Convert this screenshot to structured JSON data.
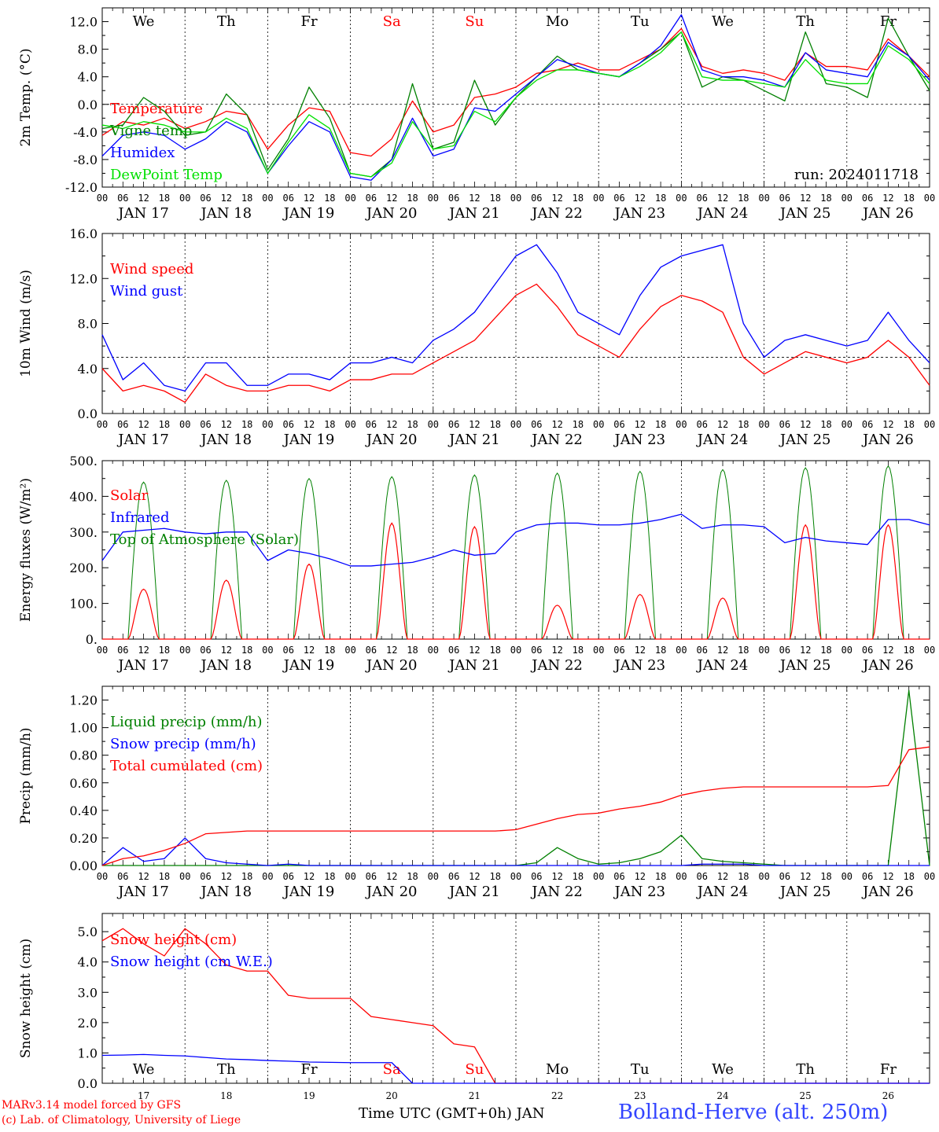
{
  "chart_data": [
    {
      "type": "line",
      "ylabel": "2m Temp. (°C)",
      "ylim": [
        -12,
        14
      ],
      "yticks": [
        "12.0",
        "8.0",
        "4.0",
        "0.0",
        "-4.0",
        "-8.0",
        "-12.0"
      ],
      "ytick_values": [
        12,
        8,
        4,
        0,
        -4,
        -8,
        -12
      ],
      "ref_line": 0,
      "run_label": "run: 2024011718",
      "day_names": [
        "We",
        "Th",
        "Fr",
        "Sa",
        "Su",
        "Mo",
        "Tu",
        "We",
        "Th",
        "Fr"
      ],
      "weekend_color": "#ff0000",
      "legend": [
        "Temperature",
        "Vigne temp",
        "Humidex",
        "DewPoint Temp"
      ],
      "x": [
        0,
        0.25,
        0.5,
        0.75,
        1,
        1.25,
        1.5,
        1.75,
        2,
        2.25,
        2.5,
        2.75,
        3,
        3.25,
        3.5,
        3.75,
        4,
        4.25,
        4.5,
        4.75,
        5,
        5.25,
        5.5,
        5.75,
        6,
        6.25,
        6.5,
        6.75,
        7,
        7.25,
        7.5,
        7.75,
        8,
        8.25,
        8.5,
        8.75,
        9,
        9.25,
        9.5,
        9.75,
        10
      ],
      "series": [
        {
          "name": "Temperature",
          "color": "#ff0000",
          "values": [
            -4.5,
            -2.5,
            -3.0,
            -2.0,
            -3.5,
            -2.5,
            -1.0,
            -1.5,
            -6.5,
            -3.0,
            -0.5,
            -1.0,
            -7.0,
            -7.5,
            -5.0,
            0.5,
            -4.0,
            -3.0,
            1.0,
            1.5,
            2.5,
            4.5,
            5.0,
            6.0,
            5.0,
            5.0,
            6.5,
            8.0,
            11.0,
            5.5,
            4.5,
            5.0,
            4.5,
            3.5,
            7.5,
            5.5,
            5.5,
            5.0,
            9.5,
            7.0,
            4.0
          ]
        },
        {
          "name": "Vigne temp",
          "color": "#008000",
          "values": [
            -3.5,
            -3.0,
            1.0,
            -1.0,
            -4.5,
            -4.0,
            1.5,
            -1.5,
            -9.5,
            -5.0,
            2.5,
            -2.0,
            -10.0,
            -10.5,
            -8.0,
            3.0,
            -6.5,
            -5.5,
            3.5,
            -3.0,
            1.0,
            4.0,
            7.0,
            5.0,
            4.5,
            4.0,
            6.0,
            8.0,
            10.5,
            2.5,
            4.0,
            3.5,
            2.0,
            0.5,
            10.5,
            3.0,
            2.5,
            1.0,
            12.5,
            7.0,
            2.0
          ]
        },
        {
          "name": "Humidex",
          "color": "#0000ff",
          "values": [
            -7.5,
            -4.5,
            -4.0,
            -4.5,
            -6.5,
            -5.0,
            -2.5,
            -4.0,
            -10.0,
            -6.0,
            -2.5,
            -4.0,
            -10.5,
            -11.0,
            -8.0,
            -2.0,
            -7.5,
            -6.5,
            -0.5,
            -1.0,
            1.5,
            4.0,
            6.5,
            5.5,
            4.5,
            4.0,
            6.0,
            8.5,
            13.0,
            5.0,
            4.0,
            4.0,
            3.5,
            2.5,
            7.5,
            5.0,
            4.5,
            4.0,
            9.0,
            7.0,
            3.5
          ]
        },
        {
          "name": "DewPoint Temp",
          "color": "#00e000",
          "values": [
            -3.0,
            -3.5,
            -2.5,
            -3.0,
            -4.0,
            -4.0,
            -2.0,
            -3.5,
            -10.0,
            -5.5,
            -1.5,
            -3.5,
            -10.0,
            -10.5,
            -8.5,
            -2.5,
            -6.5,
            -6.0,
            -1.0,
            -2.5,
            1.0,
            3.5,
            5.0,
            5.0,
            4.5,
            4.0,
            5.5,
            7.5,
            10.5,
            4.0,
            3.5,
            3.5,
            3.0,
            2.5,
            6.5,
            3.5,
            3.0,
            3.0,
            8.5,
            6.5,
            3.0
          ]
        }
      ],
      "xtick_hours": [
        "00",
        "06",
        "12",
        "18"
      ],
      "date_labels": [
        "JAN 17",
        "JAN 18",
        "JAN 19",
        "JAN 20",
        "JAN 21",
        "JAN 22",
        "JAN 23",
        "JAN 24",
        "JAN 25",
        "JAN 26"
      ]
    },
    {
      "type": "line",
      "ylabel": "10m Wind (m/s)",
      "ylim": [
        0,
        16
      ],
      "yticks": [
        "16.0",
        "12.0",
        "8.0",
        "4.0",
        "0.0"
      ],
      "ytick_values": [
        16,
        12,
        8,
        4,
        0
      ],
      "ref_line": 5,
      "legend": [
        "Wind speed",
        "Wind gust"
      ],
      "x": [
        0,
        0.25,
        0.5,
        0.75,
        1,
        1.25,
        1.5,
        1.75,
        2,
        2.25,
        2.5,
        2.75,
        3,
        3.25,
        3.5,
        3.75,
        4,
        4.25,
        4.5,
        4.75,
        5,
        5.25,
        5.5,
        5.75,
        6,
        6.25,
        6.5,
        6.75,
        7,
        7.25,
        7.5,
        7.75,
        8,
        8.25,
        8.5,
        8.75,
        9,
        9.25,
        9.5,
        9.75,
        10
      ],
      "series": [
        {
          "name": "Wind speed",
          "color": "#ff0000",
          "values": [
            4.0,
            2.0,
            2.5,
            2.0,
            1.0,
            3.5,
            2.5,
            2.0,
            2.0,
            2.5,
            2.5,
            2.0,
            3.0,
            3.0,
            3.5,
            3.5,
            4.5,
            5.5,
            6.5,
            8.5,
            10.5,
            11.5,
            9.5,
            7.0,
            6.0,
            5.0,
            7.5,
            9.5,
            10.5,
            10.0,
            9.0,
            5.0,
            3.5,
            4.5,
            5.5,
            5.0,
            4.5,
            5.0,
            6.5,
            5.0,
            2.5
          ]
        },
        {
          "name": "Wind gust",
          "color": "#0000ff",
          "values": [
            7.0,
            3.0,
            4.5,
            2.5,
            2.0,
            4.5,
            4.5,
            2.5,
            2.5,
            3.5,
            3.5,
            3.0,
            4.5,
            4.5,
            5.0,
            4.5,
            6.5,
            7.5,
            9.0,
            11.5,
            14.0,
            15.0,
            12.5,
            9.0,
            8.0,
            7.0,
            10.5,
            13.0,
            14.0,
            14.5,
            15.0,
            8.0,
            5.0,
            6.5,
            7.0,
            6.5,
            6.0,
            6.5,
            9.0,
            6.5,
            4.5
          ]
        }
      ],
      "xtick_hours": [
        "00",
        "06",
        "12",
        "18"
      ],
      "date_labels": [
        "JAN 17",
        "JAN 18",
        "JAN 19",
        "JAN 20",
        "JAN 21",
        "JAN 22",
        "JAN 23",
        "JAN 24",
        "JAN 25",
        "JAN 26"
      ]
    },
    {
      "type": "line",
      "ylabel": "Energy fluxes (W/m²)",
      "ylim": [
        0,
        500
      ],
      "yticks": [
        "500.",
        "400.",
        "300.",
        "200.",
        "100.",
        "0."
      ],
      "ytick_values": [
        500,
        400,
        300,
        200,
        100,
        0
      ],
      "legend": [
        "Solar",
        "Infrared",
        "Top of Atmosphere (Solar)"
      ],
      "solar_peaks": [
        140,
        165,
        210,
        325,
        315,
        95,
        125,
        115,
        320,
        320
      ],
      "toa_peaks": [
        440,
        445,
        450,
        455,
        460,
        465,
        470,
        475,
        480,
        485
      ],
      "x": [
        0,
        0.25,
        0.5,
        0.75,
        1,
        1.25,
        1.5,
        1.75,
        2,
        2.25,
        2.5,
        2.75,
        3,
        3.25,
        3.5,
        3.75,
        4,
        4.25,
        4.5,
        4.75,
        5,
        5.25,
        5.5,
        5.75,
        6,
        6.25,
        6.5,
        6.75,
        7,
        7.25,
        7.5,
        7.75,
        8,
        8.25,
        8.5,
        8.75,
        9,
        9.25,
        9.5,
        9.75,
        10
      ],
      "series": [
        {
          "name": "Infrared",
          "color": "#0000ff",
          "values": [
            220,
            300,
            305,
            310,
            300,
            295,
            300,
            300,
            220,
            250,
            240,
            225,
            205,
            205,
            210,
            215,
            230,
            250,
            235,
            240,
            300,
            320,
            325,
            325,
            320,
            320,
            325,
            335,
            350,
            310,
            320,
            320,
            315,
            270,
            285,
            275,
            270,
            265,
            335,
            335,
            320
          ]
        }
      ],
      "xtick_hours": [
        "00",
        "06",
        "12",
        "18"
      ],
      "date_labels": [
        "JAN 17",
        "JAN 18",
        "JAN 19",
        "JAN 20",
        "JAN 21",
        "JAN 22",
        "JAN 23",
        "JAN 24",
        "JAN 25",
        "JAN 26"
      ]
    },
    {
      "type": "line",
      "ylabel": "Precip (mm/h)",
      "ylim": [
        0,
        1.3
      ],
      "yticks": [
        "1.20",
        "1.00",
        "0.80",
        "0.60",
        "0.40",
        "0.20",
        "0.00"
      ],
      "ytick_values": [
        1.2,
        1.0,
        0.8,
        0.6,
        0.4,
        0.2,
        0.0
      ],
      "legend": [
        "Liquid precip (mm/h)",
        "Snow precip (mm/h)",
        "Total cumulated (cm)"
      ],
      "x": [
        0,
        0.25,
        0.5,
        0.75,
        1,
        1.25,
        1.5,
        1.75,
        2,
        2.25,
        2.5,
        2.75,
        3,
        3.25,
        3.5,
        3.75,
        4,
        4.25,
        4.5,
        4.75,
        5,
        5.25,
        5.5,
        5.75,
        6,
        6.25,
        6.5,
        6.75,
        7,
        7.25,
        7.5,
        7.75,
        8,
        8.25,
        8.5,
        8.75,
        9,
        9.25,
        9.5,
        9.75,
        10
      ],
      "series": [
        {
          "name": "Liquid precip (mm/h)",
          "color": "#008000",
          "values": [
            0,
            0,
            0,
            0,
            0,
            0,
            0,
            0,
            0,
            0,
            0,
            0,
            0,
            0,
            0,
            0,
            0,
            0,
            0,
            0,
            0,
            0.02,
            0.13,
            0.05,
            0.01,
            0.02,
            0.05,
            0.1,
            0.22,
            0.05,
            0.03,
            0.02,
            0.01,
            0,
            0,
            0,
            0,
            0,
            0,
            1.27,
            0
          ]
        },
        {
          "name": "Snow precip (mm/h)",
          "color": "#0000ff",
          "values": [
            0,
            0.13,
            0.03,
            0.05,
            0.2,
            0.05,
            0.02,
            0.01,
            0,
            0.01,
            0,
            0,
            0,
            0,
            0,
            0,
            0,
            0,
            0,
            0,
            0,
            0,
            0,
            0,
            0,
            0,
            0,
            0,
            0,
            0.01,
            0.01,
            0.01,
            0,
            0,
            0,
            0,
            0,
            0,
            0,
            0,
            0
          ]
        },
        {
          "name": "Total cumulated (cm)",
          "color": "#ff0000",
          "values": [
            0,
            0.05,
            0.07,
            0.11,
            0.16,
            0.23,
            0.24,
            0.25,
            0.25,
            0.25,
            0.25,
            0.25,
            0.25,
            0.25,
            0.25,
            0.25,
            0.25,
            0.25,
            0.25,
            0.25,
            0.26,
            0.3,
            0.34,
            0.37,
            0.38,
            0.41,
            0.43,
            0.46,
            0.51,
            0.54,
            0.56,
            0.57,
            0.57,
            0.57,
            0.57,
            0.57,
            0.57,
            0.57,
            0.58,
            0.84,
            0.86
          ]
        }
      ],
      "xtick_hours": [
        "00",
        "06",
        "12",
        "18"
      ],
      "date_labels": [
        "JAN 17",
        "JAN 18",
        "JAN 19",
        "JAN 20",
        "JAN 21",
        "JAN 22",
        "JAN 23",
        "JAN 24",
        "JAN 25",
        "JAN 26"
      ]
    },
    {
      "type": "line",
      "ylabel": "Snow height (cm)",
      "ylim": [
        0,
        5.6
      ],
      "yticks": [
        "5.0",
        "4.0",
        "3.0",
        "2.0",
        "1.0",
        "0.0"
      ],
      "ytick_values": [
        5,
        4,
        3,
        2,
        1,
        0
      ],
      "legend": [
        "Snow height (cm)",
        "Snow height (cm W.E.)"
      ],
      "day_names": [
        "We",
        "Th",
        "Fr",
        "Sa",
        "Su",
        "Mo",
        "Tu",
        "We",
        "Th",
        "Fr"
      ],
      "day_numbers": [
        "17",
        "18",
        "19",
        "20",
        "21",
        "22",
        "23",
        "24",
        "25",
        "26"
      ],
      "x": [
        0,
        0.25,
        0.5,
        0.75,
        1,
        1.25,
        1.5,
        1.75,
        2,
        2.25,
        2.5,
        2.75,
        3,
        3.25,
        3.5,
        3.75,
        4,
        4.25,
        4.5,
        4.75,
        5,
        5.25,
        5.5,
        5.75,
        6,
        6.25,
        6.5,
        6.75,
        7,
        7.25,
        7.5,
        7.75,
        8,
        8.25,
        8.5,
        8.75,
        9,
        9.25,
        9.5,
        9.75,
        10
      ],
      "series": [
        {
          "name": "Snow height (cm)",
          "color": "#ff0000",
          "values": [
            4.7,
            5.1,
            4.6,
            4.2,
            5.1,
            4.6,
            3.9,
            3.7,
            3.7,
            2.9,
            2.8,
            2.8,
            2.8,
            2.2,
            2.1,
            2.0,
            1.9,
            1.3,
            1.2,
            0,
            0,
            0,
            0,
            0,
            0,
            0,
            0,
            0,
            0,
            0,
            0,
            0,
            0,
            0,
            0,
            0,
            0,
            0,
            0,
            0,
            0
          ]
        },
        {
          "name": "Snow height (cm W.E.)",
          "color": "#0000ff",
          "values": [
            0.92,
            0.93,
            0.95,
            0.92,
            0.9,
            0.85,
            0.8,
            0.78,
            0.75,
            0.73,
            0.7,
            0.69,
            0.68,
            0.68,
            0.68,
            0,
            0,
            0,
            0,
            0,
            0,
            0,
            0,
            0,
            0,
            0,
            0,
            0,
            0,
            0,
            0,
            0,
            0,
            0,
            0,
            0,
            0,
            0,
            0,
            0,
            0
          ]
        }
      ]
    }
  ],
  "footer": {
    "credit_line1": "MARv3.14 model forced by GFS",
    "credit_line2": "(c) Lab. of Climatology, University of Liege",
    "xlabel": "Time UTC (GMT+0h) JAN",
    "station": "Bolland-Herve (alt. 250m)"
  }
}
